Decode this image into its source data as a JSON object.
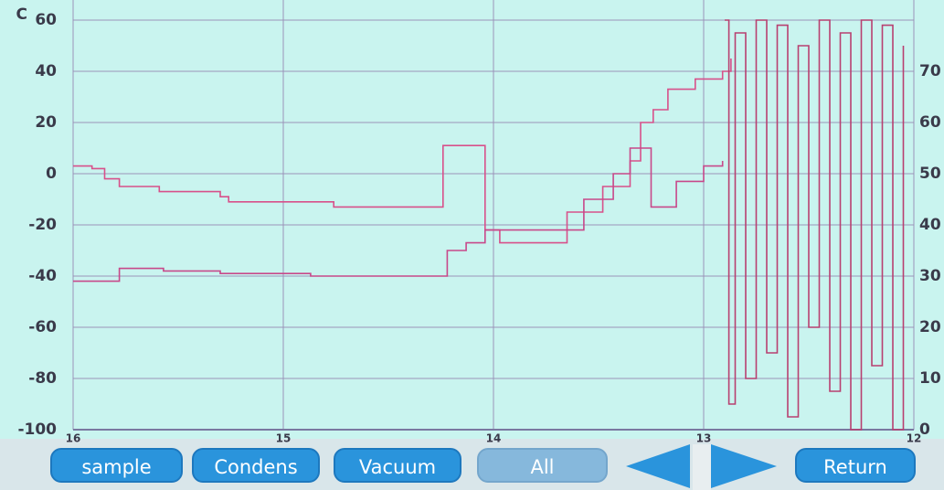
{
  "chart_data": {
    "type": "line",
    "y_label": "C",
    "xlim": [
      16,
      12
    ],
    "xticks": [
      16,
      15,
      14,
      13,
      12
    ],
    "ylim": [
      -100,
      60
    ],
    "yticks": [
      60,
      40,
      20,
      0,
      -20,
      -40,
      -60,
      -80,
      -100
    ],
    "y2lim": [
      0,
      80
    ],
    "y2ticks": [
      70,
      60,
      50,
      40,
      30,
      20,
      10,
      0
    ],
    "grid": true,
    "series": [
      {
        "color": "#d8508a",
        "x": [
          16,
          15.91,
          15.85,
          15.78,
          15.59,
          15.3,
          15.26,
          14.83,
          14.76,
          14.26,
          14.24,
          14.11,
          14.04,
          13.98,
          13.97,
          13.7,
          13.65,
          13.48,
          13.35,
          13.3,
          13.24,
          13.17,
          13.04,
          12.91,
          12.87
        ],
        "values": [
          3,
          2,
          -2,
          -5,
          -7,
          -9,
          -11,
          -11,
          -13,
          -13,
          11,
          11,
          -22,
          -22,
          -27,
          -27,
          -15,
          -5,
          5,
          20,
          25,
          33,
          37,
          40,
          45
        ]
      },
      {
        "color": "#c8488a",
        "x": [
          16,
          15.78,
          15.57,
          15.3,
          14.87,
          14.26,
          14.22,
          14.13,
          14.04,
          13.7,
          13.57,
          13.43,
          13.35,
          13.26,
          13.25,
          13.2,
          13.13,
          13.0,
          12.91
        ],
        "values": [
          -42,
          -37,
          -38,
          -39,
          -40,
          -40,
          -30,
          -27,
          -22,
          -22,
          -10,
          0,
          10,
          10,
          -13,
          -13,
          -3,
          3,
          5
        ]
      },
      {
        "color": "#b84070",
        "x": [
          12.9,
          12.88,
          12.85,
          12.8,
          12.75,
          12.7,
          12.65,
          12.6,
          12.55,
          12.5,
          12.45,
          12.4,
          12.35,
          12.3,
          12.25,
          12.2,
          12.15,
          12.1,
          12.05
        ],
        "values": [
          60,
          -90,
          55,
          -80,
          60,
          -70,
          58,
          -95,
          50,
          -60,
          60,
          -85,
          55,
          -100,
          60,
          -75,
          58,
          -100,
          50
        ]
      }
    ]
  },
  "buttons": [
    "sample",
    "Condens",
    "Vacuum",
    "All",
    "Return"
  ]
}
